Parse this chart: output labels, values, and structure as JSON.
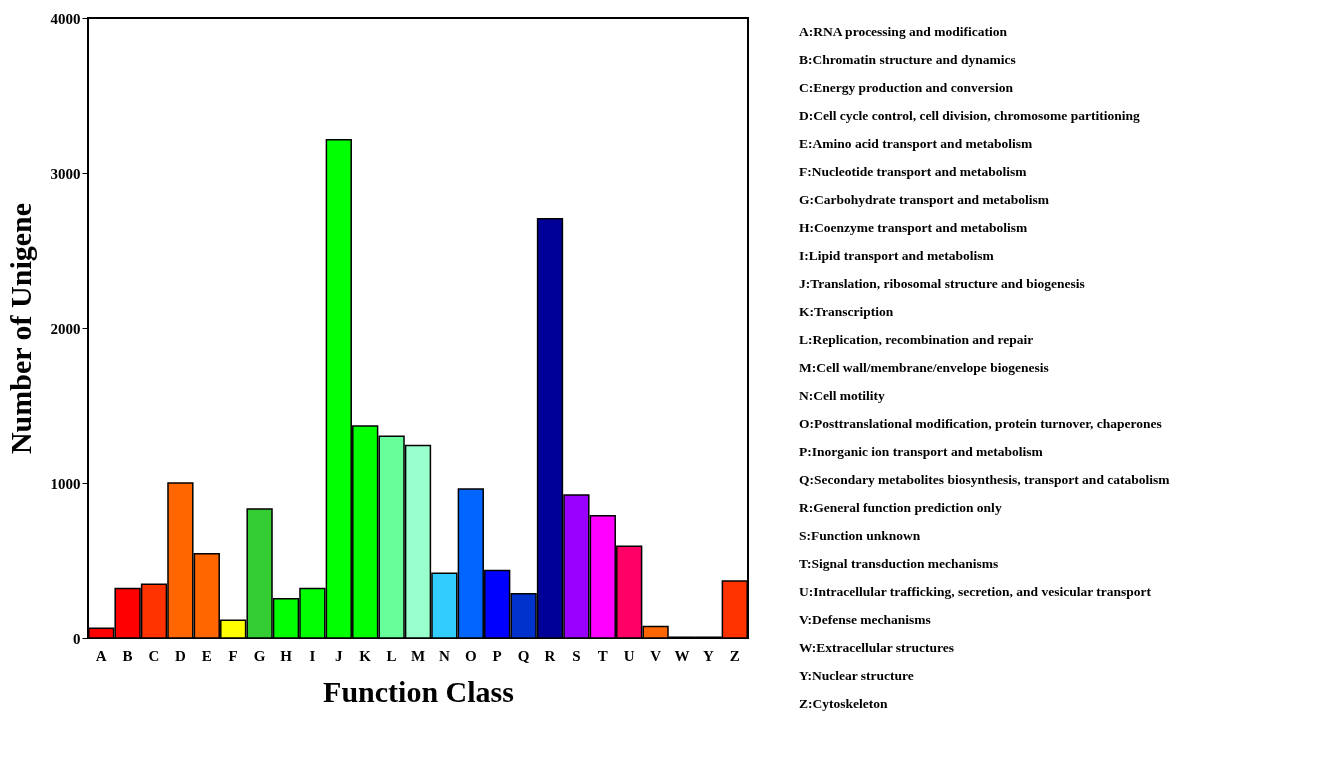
{
  "chart_data": {
    "type": "bar",
    "xlabel": "Function Class",
    "ylabel": "Number of Unigene",
    "categories": [
      "A",
      "B",
      "C",
      "D",
      "E",
      "F",
      "G",
      "H",
      "I",
      "J",
      "K",
      "L",
      "M",
      "N",
      "O",
      "P",
      "Q",
      "R",
      "S",
      "T",
      "U",
      "V",
      "W",
      "Y",
      "Z"
    ],
    "values": [
      63,
      320,
      347,
      1000,
      543,
      114,
      832,
      253,
      320,
      3214,
      1368,
      1301,
      1242,
      417,
      962,
      436,
      286,
      2705,
      922,
      789,
      592,
      74,
      5,
      5,
      368
    ],
    "colors": [
      "#ff0000",
      "#ff0000",
      "#ff3300",
      "#ff6600",
      "#ff6600",
      "#ffff00",
      "#33cc33",
      "#00ff00",
      "#00ff00",
      "#00ff00",
      "#00ff00",
      "#66ff99",
      "#99ffcc",
      "#33ccff",
      "#0066ff",
      "#0000ff",
      "#0033cc",
      "#000099",
      "#9900ff",
      "#ff00ff",
      "#ff0066",
      "#ff6600",
      "#ff6600",
      "#ff6600",
      "#ff3300"
    ],
    "ylim": [
      0,
      4000
    ],
    "yticks": [
      0,
      1000,
      2000,
      3000,
      4000
    ],
    "grid": false,
    "annotations": [
      "A:RNA processing and modification",
      "B:Chromatin structure and dynamics",
      "C:Energy production and conversion",
      "D:Cell cycle control, cell division, chromosome partitioning",
      "E:Amino acid transport and metabolism",
      "F:Nucleotide transport and metabolism",
      "G:Carbohydrate transport and metabolism",
      "H:Coenzyme transport and metabolism",
      "I:Lipid transport and metabolism",
      "J:Translation, ribosomal structure and biogenesis",
      "K:Transcription",
      "L:Replication, recombination and repair",
      "M:Cell wall/membrane/envelope biogenesis",
      "N:Cell motility",
      "O:Posttranslational modification, protein turnover, chaperones",
      "P:Inorganic ion transport and metabolism",
      "Q:Secondary metabolites biosynthesis, transport and catabolism",
      "R:General function prediction only",
      "S:Function unknown",
      "T:Signal transduction mechanisms",
      "U:Intracellular trafficking, secretion, and vesicular transport",
      "V:Defense mechanisms",
      "W:Extracellular structures",
      "Y:Nuclear structure",
      "Z:Cytoskeleton"
    ]
  }
}
